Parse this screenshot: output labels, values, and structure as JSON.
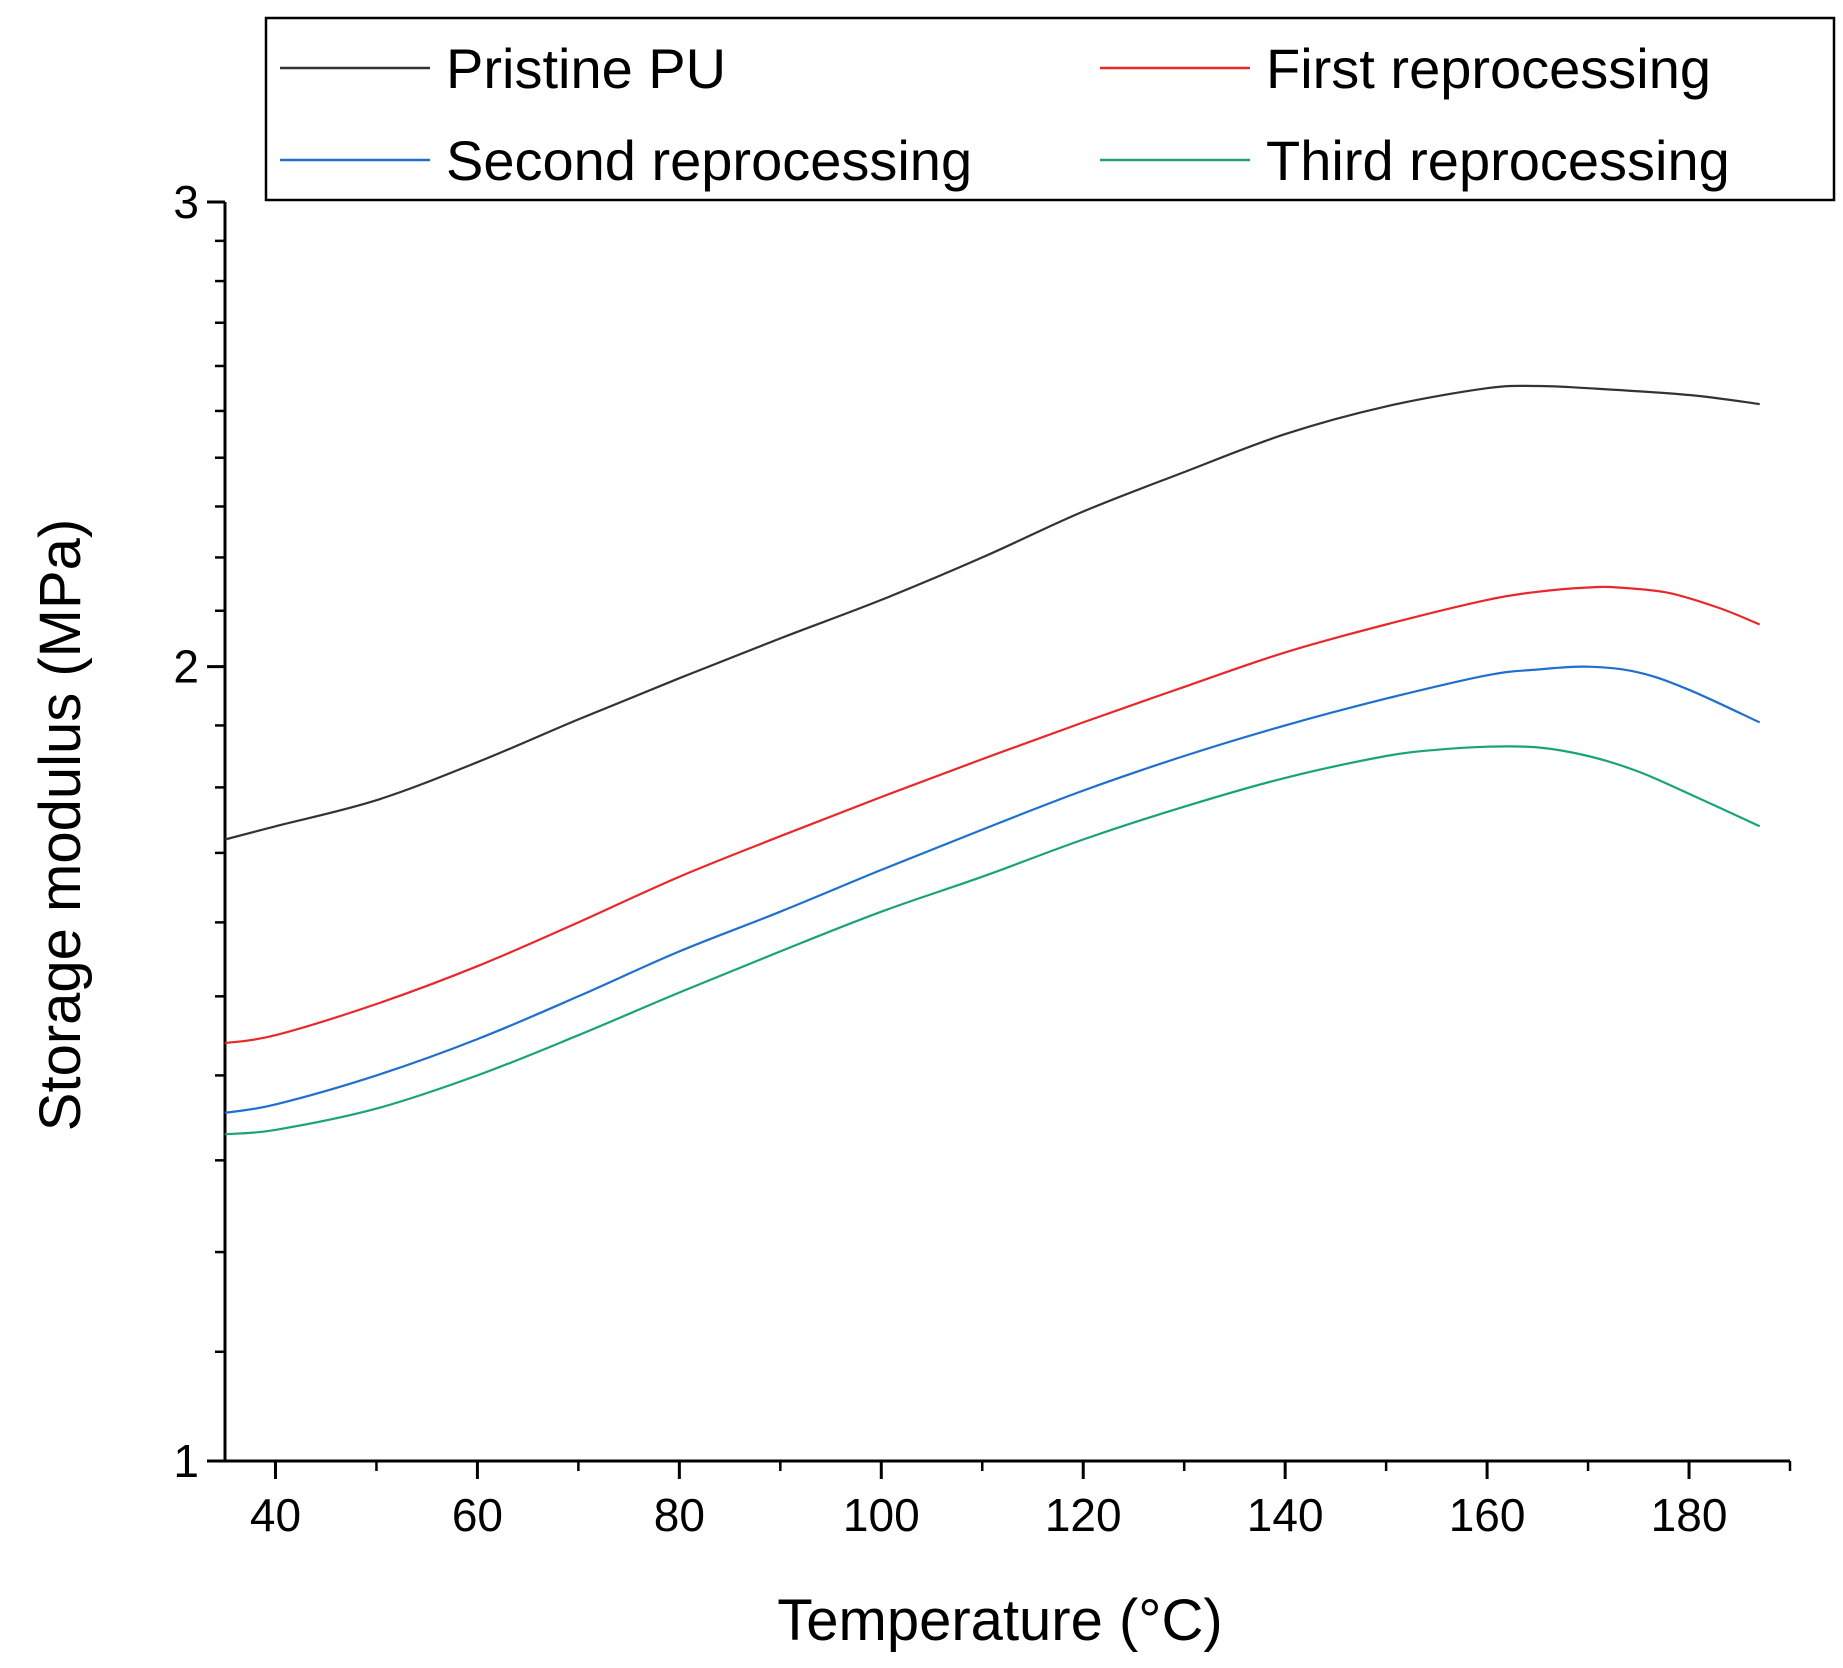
{
  "chart_data": {
    "type": "line",
    "title": "",
    "xlabel": "Temperature (°C)",
    "ylabel": "Storage modulus (MPa)",
    "xlim": [
      35,
      190
    ],
    "ylim": [
      1,
      3
    ],
    "yscale": "log",
    "x_ticks": [
      40,
      60,
      80,
      100,
      120,
      140,
      160,
      180
    ],
    "x_tick_labels": [
      "40",
      "60",
      "80",
      "100",
      "120",
      "140",
      "160",
      "180"
    ],
    "y_ticks": [
      1,
      2,
      3
    ],
    "y_tick_labels": [
      "1",
      "2",
      "3"
    ],
    "legend": {
      "position": "top",
      "columns": 2
    },
    "series": [
      {
        "name": "Pristine PU",
        "color": "#333333",
        "x": [
          35,
          40,
          50,
          60,
          70,
          80,
          90,
          100,
          110,
          120,
          130,
          140,
          150,
          160,
          165,
          170,
          180,
          187
        ],
        "values": [
          1.72,
          1.74,
          1.78,
          1.84,
          1.91,
          1.98,
          2.05,
          2.12,
          2.2,
          2.29,
          2.37,
          2.45,
          2.51,
          2.55,
          2.555,
          2.55,
          2.535,
          2.515
        ]
      },
      {
        "name": "First reprocessing",
        "color": "#e8282b",
        "x": [
          35,
          40,
          50,
          60,
          70,
          80,
          90,
          100,
          110,
          120,
          130,
          140,
          150,
          160,
          165,
          170,
          173,
          178,
          183,
          187
        ],
        "values": [
          1.44,
          1.45,
          1.49,
          1.54,
          1.6,
          1.665,
          1.725,
          1.785,
          1.845,
          1.905,
          1.965,
          2.025,
          2.075,
          2.12,
          2.135,
          2.143,
          2.143,
          2.133,
          2.105,
          2.075
        ]
      },
      {
        "name": "Second reprocessing",
        "color": "#1f6fcf",
        "x": [
          35,
          40,
          50,
          60,
          70,
          80,
          90,
          100,
          110,
          120,
          130,
          140,
          150,
          160,
          165,
          170,
          175,
          180,
          187
        ],
        "values": [
          1.355,
          1.365,
          1.4,
          1.445,
          1.5,
          1.56,
          1.615,
          1.675,
          1.735,
          1.795,
          1.85,
          1.9,
          1.945,
          1.985,
          1.995,
          2.0,
          1.99,
          1.96,
          1.905
        ]
      },
      {
        "name": "Third reprocessing",
        "color": "#1aa37a",
        "x": [
          35,
          40,
          50,
          60,
          70,
          80,
          90,
          100,
          110,
          120,
          130,
          140,
          150,
          155,
          160,
          165,
          170,
          175,
          180,
          187
        ],
        "values": [
          1.33,
          1.335,
          1.36,
          1.4,
          1.45,
          1.505,
          1.56,
          1.615,
          1.665,
          1.72,
          1.77,
          1.815,
          1.85,
          1.86,
          1.865,
          1.864,
          1.85,
          1.825,
          1.79,
          1.74
        ]
      }
    ]
  }
}
